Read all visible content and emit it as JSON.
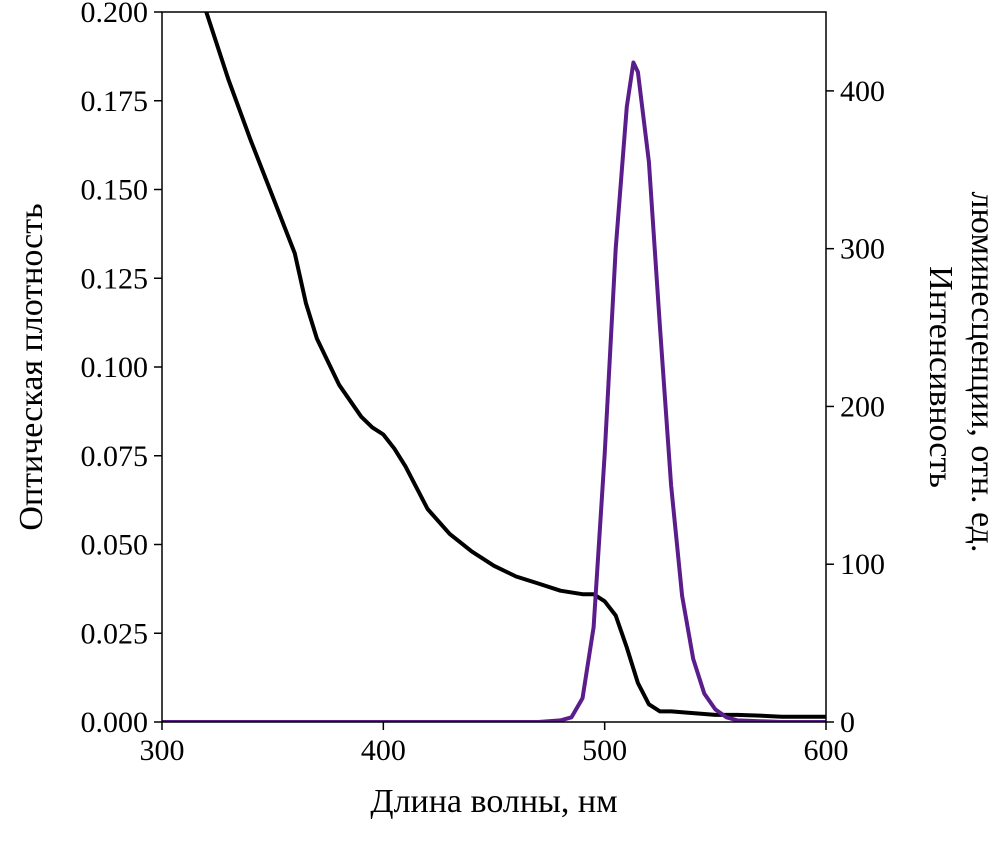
{
  "chart_data": {
    "type": "line",
    "title": "",
    "xlabel": "Длина волны, нм",
    "ylabel_left": "Оптическая плотность",
    "ylabel_right_line1": "Интенсивность",
    "ylabel_right_line2": "люминесценции, отн. ед.",
    "xlim": [
      300,
      600
    ],
    "ylim_left": [
      0,
      0.2
    ],
    "ylim_right": [
      0,
      450
    ],
    "x_ticks": [
      "300",
      "400",
      "500",
      "600"
    ],
    "y_left_ticks": [
      "0.000",
      "0.025",
      "0.050",
      "0.075",
      "0.100",
      "0.125",
      "0.150",
      "0.175",
      "0.200"
    ],
    "y_right_ticks": [
      "0",
      "100",
      "200",
      "300",
      "400"
    ],
    "grid": false,
    "legend": "none",
    "series": [
      {
        "axis": "left",
        "color": "#000000",
        "x": [
          300,
          320,
          330,
          340,
          350,
          360,
          365,
          370,
          380,
          390,
          395,
          400,
          405,
          410,
          420,
          430,
          440,
          450,
          460,
          470,
          480,
          490,
          495,
          500,
          505,
          510,
          515,
          520,
          525,
          530,
          540,
          550,
          560,
          570,
          580,
          590,
          600
        ],
        "y": [
          0.228,
          0.2,
          0.181,
          0.164,
          0.148,
          0.132,
          0.118,
          0.108,
          0.095,
          0.086,
          0.083,
          0.081,
          0.077,
          0.072,
          0.06,
          0.053,
          0.048,
          0.044,
          0.041,
          0.039,
          0.037,
          0.036,
          0.036,
          0.034,
          0.03,
          0.021,
          0.011,
          0.005,
          0.003,
          0.003,
          0.0025,
          0.002,
          0.002,
          0.0018,
          0.0015,
          0.0015,
          0.0015
        ]
      },
      {
        "axis": "right",
        "color": "#5b1d8c",
        "x": [
          300,
          470,
          480,
          485,
          490,
          495,
          500,
          505,
          510,
          513,
          515,
          520,
          525,
          530,
          535,
          540,
          545,
          550,
          555,
          560,
          570,
          580,
          600
        ],
        "y": [
          0,
          0,
          1,
          3,
          15,
          60,
          170,
          300,
          390,
          418,
          412,
          355,
          250,
          150,
          80,
          40,
          18,
          8,
          3,
          1,
          0.5,
          0,
          0
        ]
      }
    ]
  }
}
